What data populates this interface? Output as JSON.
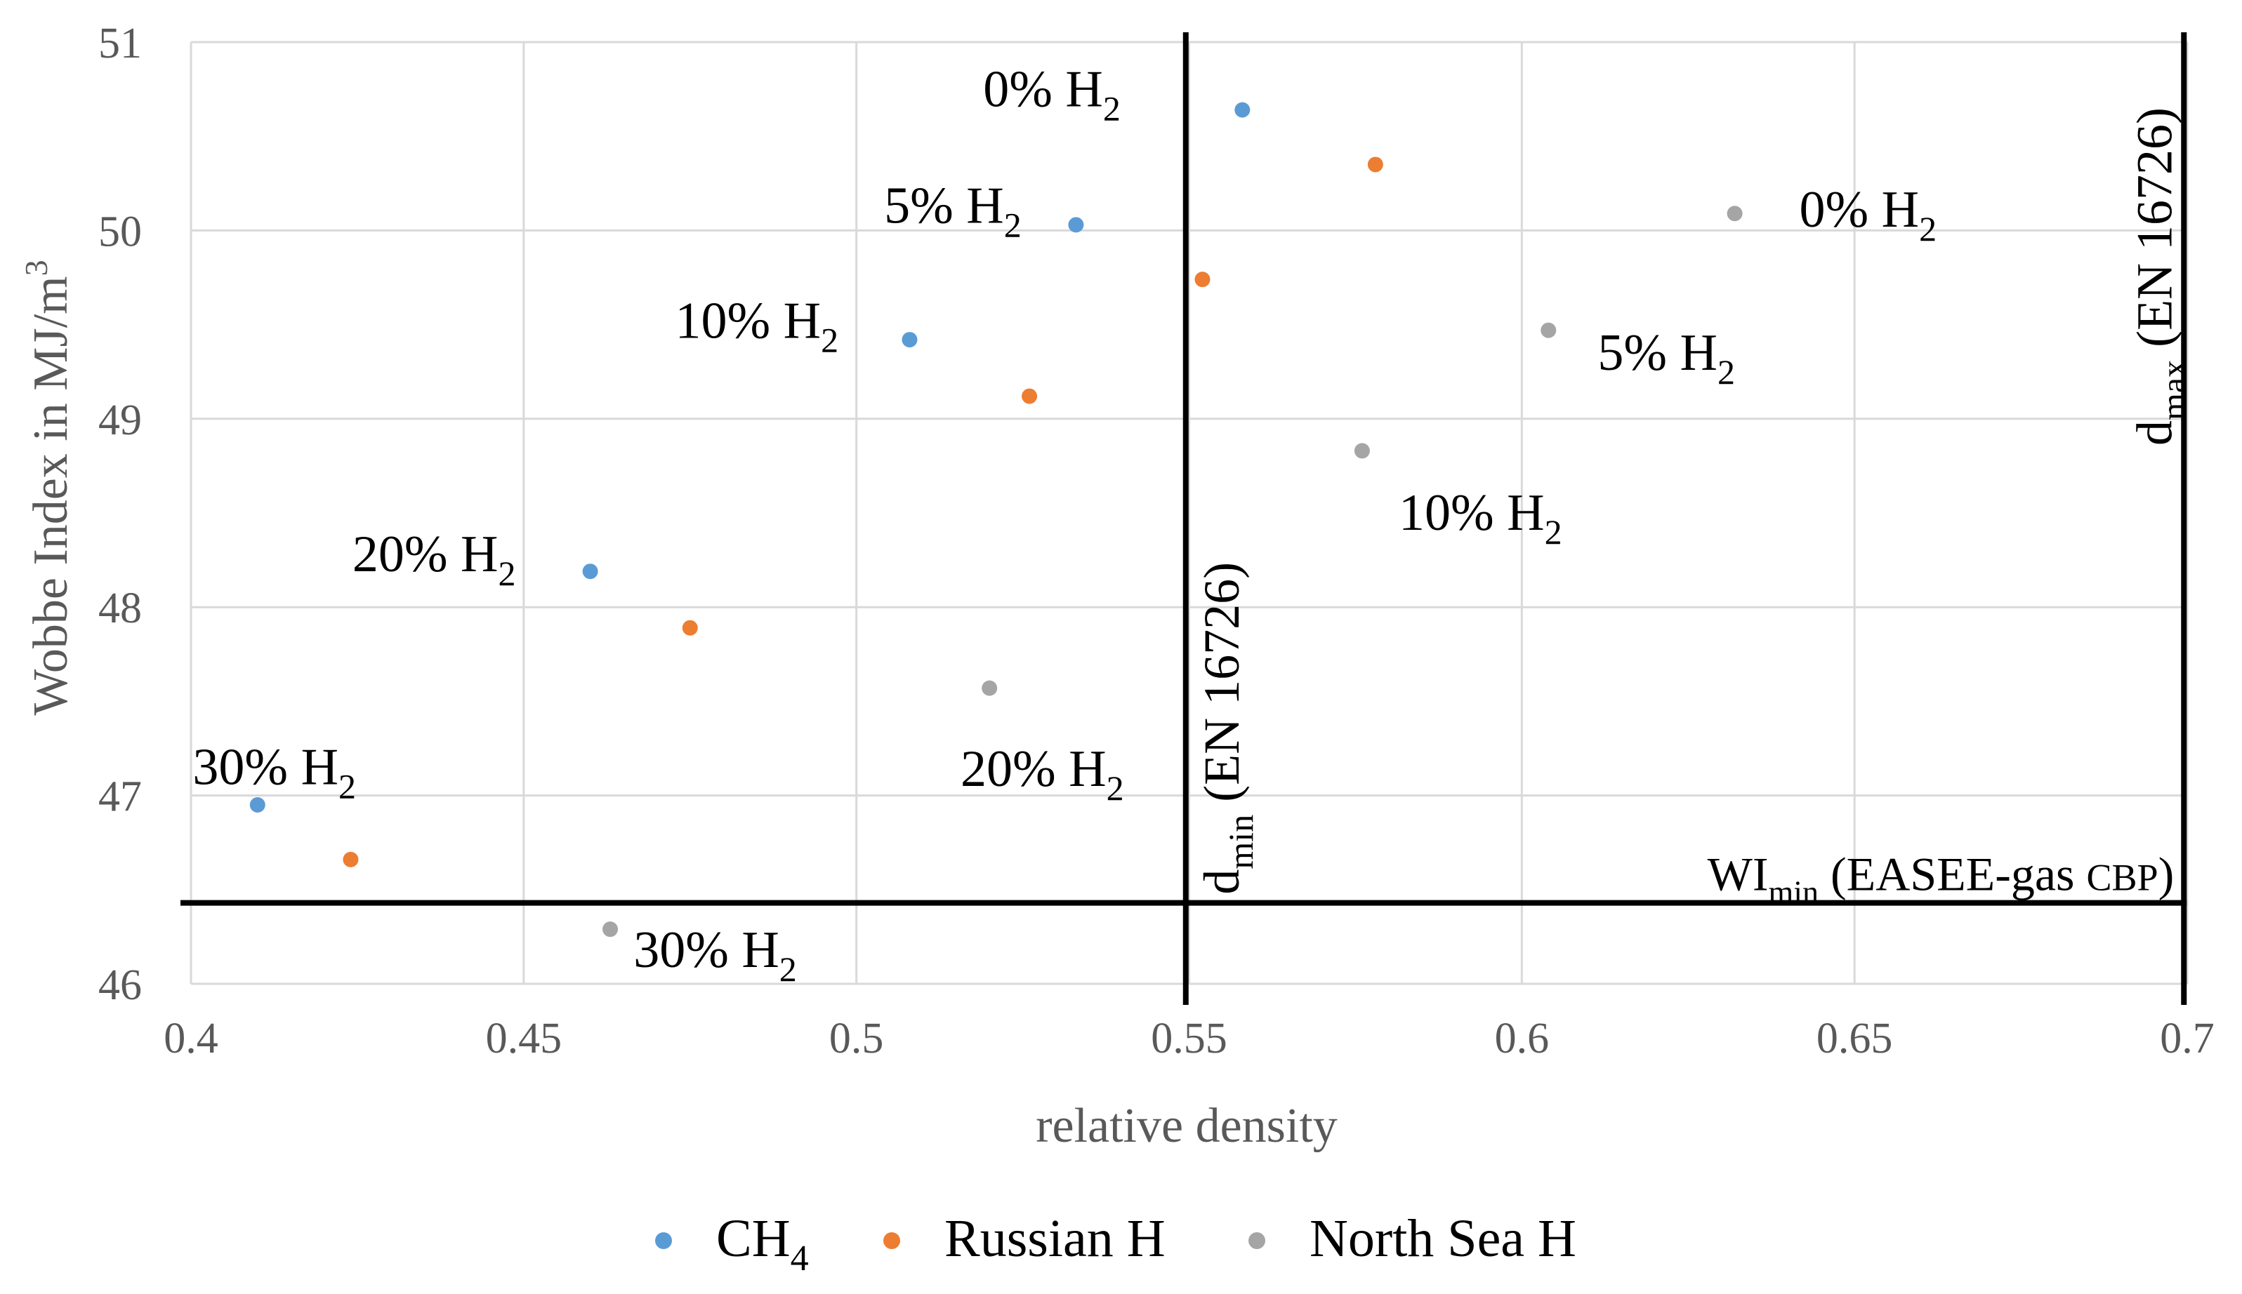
{
  "chart_data": {
    "type": "scatter",
    "title": "",
    "xlabel": "relative density",
    "ylabel": "Wobbe Index in MJ/m",
    "ylabel_sup": "3",
    "xlim": [
      0.4,
      0.7
    ],
    "ylim": [
      46,
      51
    ],
    "xticks": [
      0.4,
      0.45,
      0.5,
      0.55,
      0.6,
      0.65,
      0.7
    ],
    "xtick_labels": [
      "0.4",
      "0.45",
      "0.5",
      "0.55",
      "0.6",
      "0.65",
      "0.7"
    ],
    "yticks": [
      46,
      47,
      48,
      49,
      50,
      51
    ],
    "ytick_labels": [
      "46",
      "47",
      "48",
      "49",
      "50",
      "51"
    ],
    "grid": true,
    "legend_position": "bottom-center",
    "series": [
      {
        "name": "CH",
        "name_sub": "4",
        "color": "#5b9bd5",
        "points": [
          {
            "x": 0.558,
            "y": 50.64
          },
          {
            "x": 0.533,
            "y": 50.03
          },
          {
            "x": 0.508,
            "y": 49.42
          },
          {
            "x": 0.46,
            "y": 48.19
          },
          {
            "x": 0.41,
            "y": 46.95
          }
        ]
      },
      {
        "name": "Russian H",
        "name_sub": "",
        "color": "#ed7d31",
        "points": [
          {
            "x": 0.578,
            "y": 50.35
          },
          {
            "x": 0.552,
            "y": 49.74
          },
          {
            "x": 0.526,
            "y": 49.12
          },
          {
            "x": 0.475,
            "y": 47.89
          },
          {
            "x": 0.424,
            "y": 46.66
          }
        ]
      },
      {
        "name": "North Sea H",
        "name_sub": "",
        "color": "#a5a5a5",
        "points": [
          {
            "x": 0.632,
            "y": 50.09
          },
          {
            "x": 0.604,
            "y": 49.47
          },
          {
            "x": 0.576,
            "y": 48.83
          },
          {
            "x": 0.52,
            "y": 47.57
          },
          {
            "x": 0.463,
            "y": 46.29
          }
        ]
      }
    ],
    "point_labels": [
      {
        "text": "0% H",
        "sub": "2",
        "x": 0.5397,
        "y": 50.66,
        "anchor": "end"
      },
      {
        "text": "5% H",
        "sub": "2",
        "x": 0.5248,
        "y": 50.04,
        "anchor": "end"
      },
      {
        "text": "10% H",
        "sub": "2",
        "x": 0.4973,
        "y": 49.43,
        "anchor": "end"
      },
      {
        "text": "20% H",
        "sub": "2",
        "x": 0.4488,
        "y": 48.19,
        "anchor": "end"
      },
      {
        "text": "30% H",
        "sub": "2",
        "x": 0.4248,
        "y": 47.06,
        "anchor": "end"
      },
      {
        "text": "0% H",
        "sub": "2",
        "x": 0.6417,
        "y": 50.02,
        "anchor": "start"
      },
      {
        "text": "5% H",
        "sub": "2",
        "x": 0.6114,
        "y": 49.26,
        "anchor": "start"
      },
      {
        "text": "10% H",
        "sub": "2",
        "x": 0.5815,
        "y": 48.41,
        "anchor": "start"
      },
      {
        "text": "20% H",
        "sub": "2",
        "x": 0.5402,
        "y": 47.05,
        "anchor": "end"
      },
      {
        "text": "30% H",
        "sub": "2",
        "x": 0.4665,
        "y": 46.09,
        "anchor": "start"
      }
    ],
    "reference_lines": {
      "d_min": {
        "x": 0.5495,
        "main": "d",
        "sub": "min",
        "rest": " (EN 16726)"
      },
      "d_max": {
        "x": 0.6995,
        "main": "d",
        "sub": "max",
        "rest": " (EN 16726)"
      },
      "wi_min": {
        "y": 46.43,
        "main": "WI",
        "sub": "min",
        "rest": " (EASEE-gas ",
        "rest_small": "CBP",
        "close": ")"
      }
    }
  }
}
